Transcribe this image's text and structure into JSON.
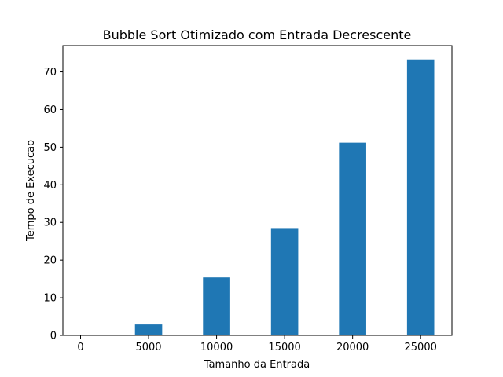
{
  "chart_data": {
    "type": "bar",
    "title": "Bubble Sort Otimizado com Entrada Decrescente",
    "xlabel": "Tamanho da Entrada",
    "ylabel": "Tempo de Execucao",
    "x": [
      5000,
      10000,
      15000,
      20000,
      25000
    ],
    "values": [
      2.9,
      15.4,
      28.5,
      51.2,
      73.3
    ],
    "bar_width": 2000,
    "xlim": [
      -1300,
      27300
    ],
    "ylim": [
      0,
      77
    ],
    "xticks": [
      0,
      5000,
      10000,
      15000,
      20000,
      25000
    ],
    "yticks": [
      0,
      10,
      20,
      30,
      40,
      50,
      60,
      70
    ],
    "bar_color": "#1f77b4",
    "grid": false,
    "legend": "none"
  }
}
